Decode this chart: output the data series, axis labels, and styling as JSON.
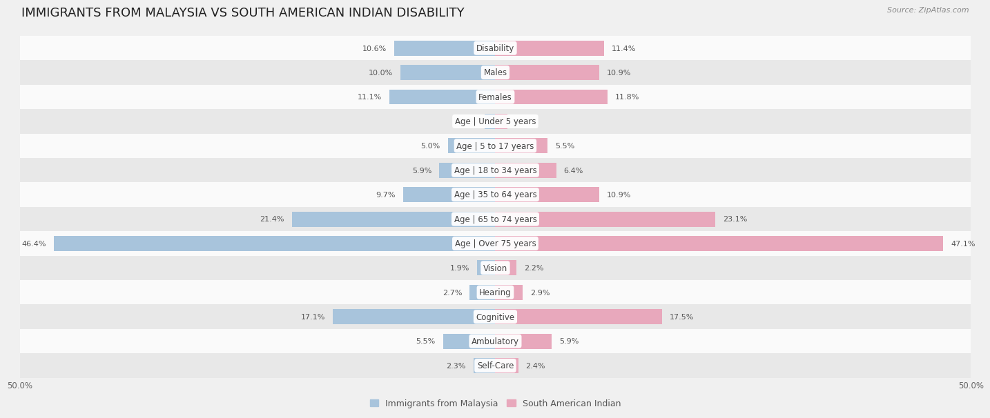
{
  "title": "IMMIGRANTS FROM MALAYSIA VS SOUTH AMERICAN INDIAN DISABILITY",
  "source": "Source: ZipAtlas.com",
  "categories": [
    "Disability",
    "Males",
    "Females",
    "Age | Under 5 years",
    "Age | 5 to 17 years",
    "Age | 18 to 34 years",
    "Age | 35 to 64 years",
    "Age | 65 to 74 years",
    "Age | Over 75 years",
    "Vision",
    "Hearing",
    "Cognitive",
    "Ambulatory",
    "Self-Care"
  ],
  "left_values": [
    10.6,
    10.0,
    11.1,
    1.1,
    5.0,
    5.9,
    9.7,
    21.4,
    46.4,
    1.9,
    2.7,
    17.1,
    5.5,
    2.3
  ],
  "right_values": [
    11.4,
    10.9,
    11.8,
    1.3,
    5.5,
    6.4,
    10.9,
    23.1,
    47.1,
    2.2,
    2.9,
    17.5,
    5.9,
    2.4
  ],
  "left_color": "#a8c4dc",
  "right_color": "#e8a8bc",
  "background_color": "#f0f0f0",
  "row_bg_light": "#fafafa",
  "row_bg_dark": "#e8e8e8",
  "legend_labels": [
    "Immigrants from Malaysia",
    "South American Indian"
  ],
  "axis_max": 50.0,
  "bar_height": 0.62,
  "title_fontsize": 13,
  "label_fontsize": 8.5,
  "value_fontsize": 8.0,
  "bottom_labels": [
    "50.0%",
    "50.0%"
  ]
}
